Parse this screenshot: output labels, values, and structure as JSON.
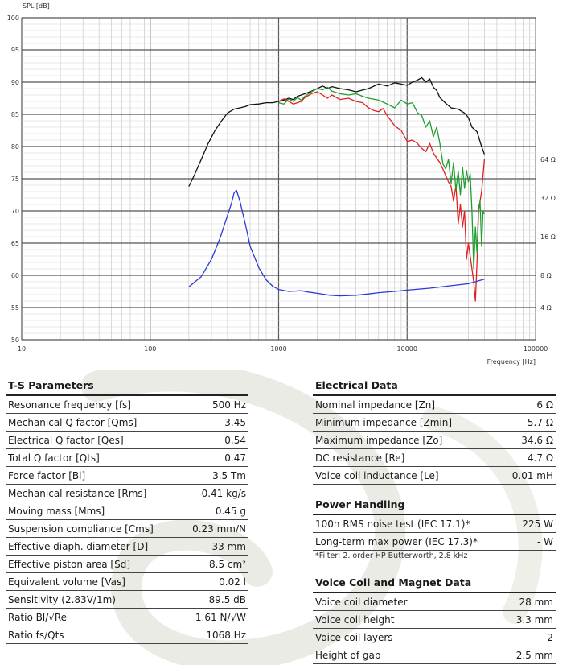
{
  "chart_data": {
    "type": "line",
    "ylabel": "SPL [dB]",
    "xlabel": "Frequency [Hz]",
    "x_scale": "log",
    "xlim": [
      10,
      100000
    ],
    "ylim": [
      50,
      100
    ],
    "x_ticks": [
      10,
      100,
      1000,
      10000,
      100000
    ],
    "x_tick_labels": [
      "10",
      "100",
      "1000",
      "10000",
      "100000"
    ],
    "y_ticks": [
      50,
      55,
      60,
      65,
      70,
      75,
      80,
      85,
      90,
      95,
      100
    ],
    "y_tick_labels": [
      "50",
      "55",
      "60",
      "65",
      "70",
      "75",
      "80",
      "85",
      "90",
      "95",
      "100"
    ],
    "right_axis": {
      "label_unit": "Ω",
      "ticks": [
        {
          "spl": 55,
          "label": "4 Ω"
        },
        {
          "spl": 60,
          "label": "8 Ω"
        },
        {
          "spl": 66,
          "label": "16 Ω"
        },
        {
          "spl": 72,
          "label": "32 Ω"
        },
        {
          "spl": 78,
          "label": "64 Ω"
        }
      ]
    },
    "grid": true,
    "series": [
      {
        "color": "#111111",
        "points": [
          [
            200,
            73.8
          ],
          [
            220,
            75.5
          ],
          [
            250,
            78
          ],
          [
            280,
            80.3
          ],
          [
            320,
            82.5
          ],
          [
            360,
            84
          ],
          [
            400,
            85.2
          ],
          [
            450,
            85.8
          ],
          [
            500,
            86
          ],
          [
            550,
            86.2
          ],
          [
            600,
            86.5
          ],
          [
            700,
            86.6
          ],
          [
            800,
            86.8
          ],
          [
            900,
            86.8
          ],
          [
            1000,
            87
          ],
          [
            1100,
            87.2
          ],
          [
            1200,
            87.5
          ],
          [
            1300,
            87.3
          ],
          [
            1400,
            87.8
          ],
          [
            1500,
            88
          ],
          [
            1600,
            88.2
          ],
          [
            1800,
            88.6
          ],
          [
            2000,
            89
          ],
          [
            2200,
            89.4
          ],
          [
            2400,
            89
          ],
          [
            2600,
            89.3
          ],
          [
            3000,
            89
          ],
          [
            3500,
            88.8
          ],
          [
            4000,
            88.5
          ],
          [
            5000,
            89
          ],
          [
            6000,
            89.7
          ],
          [
            7000,
            89.4
          ],
          [
            8000,
            89.9
          ],
          [
            9000,
            89.7
          ],
          [
            10000,
            89.5
          ],
          [
            11000,
            90
          ],
          [
            12000,
            90.3
          ],
          [
            13000,
            90.7
          ],
          [
            14000,
            90
          ],
          [
            15000,
            90.5
          ],
          [
            16000,
            89.2
          ],
          [
            17000,
            88.7
          ],
          [
            18000,
            87.6
          ],
          [
            20000,
            86.7
          ],
          [
            22000,
            86
          ],
          [
            25000,
            85.8
          ],
          [
            28000,
            85.2
          ],
          [
            30000,
            84.5
          ],
          [
            32000,
            83
          ],
          [
            35000,
            82.3
          ],
          [
            38000,
            80
          ],
          [
            40000,
            78.8
          ]
        ]
      },
      {
        "color": "#e02020",
        "points": [
          [
            1000,
            87
          ],
          [
            1100,
            87.4
          ],
          [
            1200,
            87
          ],
          [
            1300,
            86.6
          ],
          [
            1400,
            86.8
          ],
          [
            1500,
            87
          ],
          [
            1600,
            87.6
          ],
          [
            1800,
            88.2
          ],
          [
            2000,
            88.5
          ],
          [
            2200,
            88
          ],
          [
            2400,
            87.5
          ],
          [
            2600,
            88
          ],
          [
            3000,
            87.3
          ],
          [
            3500,
            87.5
          ],
          [
            4000,
            87
          ],
          [
            4500,
            86.8
          ],
          [
            5000,
            86
          ],
          [
            5500,
            85.6
          ],
          [
            6000,
            85.4
          ],
          [
            6500,
            85.9
          ],
          [
            7000,
            84.8
          ],
          [
            7500,
            84
          ],
          [
            8000,
            83.2
          ],
          [
            9000,
            82.5
          ],
          [
            10000,
            80.8
          ],
          [
            11000,
            81
          ],
          [
            12000,
            80.5
          ],
          [
            13000,
            79.7
          ],
          [
            14000,
            79.2
          ],
          [
            15000,
            80.5
          ],
          [
            16000,
            79
          ],
          [
            17000,
            78.2
          ],
          [
            18000,
            77.5
          ],
          [
            19000,
            76.5
          ],
          [
            20000,
            75.5
          ],
          [
            21000,
            74.5
          ],
          [
            22000,
            73.8
          ],
          [
            23000,
            71.5
          ],
          [
            24000,
            74
          ],
          [
            25000,
            68
          ],
          [
            26000,
            71
          ],
          [
            27000,
            67.5
          ],
          [
            28000,
            70
          ],
          [
            29000,
            62.5
          ],
          [
            30000,
            65
          ],
          [
            31000,
            63
          ],
          [
            32000,
            61
          ],
          [
            33000,
            59
          ],
          [
            34000,
            56
          ],
          [
            35000,
            62
          ],
          [
            36000,
            70
          ],
          [
            38000,
            73
          ],
          [
            40000,
            78
          ]
        ]
      },
      {
        "color": "#1f9e2e",
        "points": [
          [
            1000,
            86.8
          ],
          [
            1100,
            86.6
          ],
          [
            1200,
            87.4
          ],
          [
            1300,
            87
          ],
          [
            1400,
            87.6
          ],
          [
            1500,
            87.2
          ],
          [
            1600,
            87.8
          ],
          [
            1800,
            88.5
          ],
          [
            2000,
            89
          ],
          [
            2200,
            88.8
          ],
          [
            2400,
            89.2
          ],
          [
            2600,
            88.6
          ],
          [
            3000,
            88.2
          ],
          [
            3500,
            88
          ],
          [
            4000,
            88.2
          ],
          [
            4500,
            87.8
          ],
          [
            5000,
            87.5
          ],
          [
            6000,
            87.2
          ],
          [
            7000,
            86.6
          ],
          [
            8000,
            86
          ],
          [
            9000,
            87.2
          ],
          [
            10000,
            86.6
          ],
          [
            11000,
            86.8
          ],
          [
            12000,
            85.3
          ],
          [
            13000,
            84.8
          ],
          [
            14000,
            83
          ],
          [
            15000,
            84
          ],
          [
            16000,
            81.5
          ],
          [
            17000,
            83
          ],
          [
            18000,
            80.5
          ],
          [
            19000,
            77.3
          ],
          [
            20000,
            76.5
          ],
          [
            21000,
            78
          ],
          [
            22000,
            74.3
          ],
          [
            23000,
            77.5
          ],
          [
            24000,
            73.2
          ],
          [
            25000,
            76.2
          ],
          [
            26000,
            72.5
          ],
          [
            27000,
            76.8
          ],
          [
            28000,
            73.5
          ],
          [
            29000,
            76.3
          ],
          [
            30000,
            74.5
          ],
          [
            31000,
            75.8
          ],
          [
            32000,
            70
          ],
          [
            33000,
            61
          ],
          [
            34000,
            67.5
          ],
          [
            35000,
            63.5
          ],
          [
            36000,
            70.5
          ],
          [
            37000,
            71.5
          ],
          [
            38000,
            64.5
          ],
          [
            39000,
            70
          ],
          [
            40000,
            69.5
          ]
        ]
      },
      {
        "color": "#2a3ad6",
        "points": [
          [
            200,
            58.2
          ],
          [
            250,
            59.8
          ],
          [
            300,
            62.5
          ],
          [
            350,
            65.8
          ],
          [
            400,
            69.3
          ],
          [
            430,
            71.2
          ],
          [
            450,
            72.8
          ],
          [
            470,
            73.2
          ],
          [
            500,
            71.5
          ],
          [
            550,
            68
          ],
          [
            600,
            64.5
          ],
          [
            700,
            61.2
          ],
          [
            800,
            59.3
          ],
          [
            900,
            58.3
          ],
          [
            1000,
            57.8
          ],
          [
            1200,
            57.5
          ],
          [
            1500,
            57.6
          ],
          [
            1700,
            57.4
          ],
          [
            2000,
            57.2
          ],
          [
            2500,
            56.9
          ],
          [
            3000,
            56.8
          ],
          [
            4000,
            56.9
          ],
          [
            5000,
            57.1
          ],
          [
            6000,
            57.3
          ],
          [
            8000,
            57.5
          ],
          [
            10000,
            57.7
          ],
          [
            15000,
            58
          ],
          [
            20000,
            58.3
          ],
          [
            30000,
            58.7
          ],
          [
            40000,
            59.4
          ]
        ]
      }
    ]
  },
  "ts": {
    "title": "T-S Parameters",
    "rows": [
      {
        "label": "Resonance frequency [fs]",
        "value": "500 Hz"
      },
      {
        "label": "Mechanical Q factor [Qms]",
        "value": "3.45"
      },
      {
        "label": "Electrical Q factor [Qes]",
        "value": "0.54"
      },
      {
        "label": "Total Q factor [Qts]",
        "value": "0.47"
      },
      {
        "label": "Force factor [Bl]",
        "value": "3.5 Tm"
      },
      {
        "label": "Mechanical resistance [Rms]",
        "value": "0.41 kg/s"
      },
      {
        "label": "Moving mass [Mms]",
        "value": "0.45 g"
      },
      {
        "label": "Suspension compliance [Cms]",
        "value": "0.23 mm/N"
      },
      {
        "label": "Effective diaph. diameter [D]",
        "value": "33 mm"
      },
      {
        "label": "Effective piston area [Sd]",
        "value": "8.5 cm²"
      },
      {
        "label": "Equivalent volume [Vas]",
        "value": "0.02 l"
      },
      {
        "label": "Sensitivity (2.83V/1m)",
        "value": "89.5 dB"
      },
      {
        "label": "Ratio Bl/√Re",
        "value": "1.61 N/√W"
      },
      {
        "label": "Ratio fs/Qts",
        "value": "1068 Hz"
      }
    ]
  },
  "electrical": {
    "title": "Electrical Data",
    "rows": [
      {
        "label": "Nominal impedance [Zn]",
        "value": "6 Ω"
      },
      {
        "label": "Minimum impedance [Zmin]",
        "value": "5.7 Ω"
      },
      {
        "label": "Maximum impedance [Zo]",
        "value": "34.6 Ω"
      },
      {
        "label": "DC resistance [Re]",
        "value": "4.7 Ω"
      },
      {
        "label": "Voice coil inductance [Le]",
        "value": "0.01 mH"
      }
    ]
  },
  "power": {
    "title": "Power Handling",
    "rows": [
      {
        "label": "100h RMS noise test (IEC 17.1)*",
        "value": "225 W"
      },
      {
        "label": "Long-term max power (IEC 17.3)*",
        "value": "- W"
      }
    ],
    "note": "*Filter: 2. order HP Butterworth, 2.8 kHz"
  },
  "voicecoil": {
    "title": "Voice Coil and Magnet Data",
    "rows": [
      {
        "label": "Voice coil diameter",
        "value": "28 mm"
      },
      {
        "label": "Voice coil height",
        "value": "3.3 mm"
      },
      {
        "label": "Voice coil layers",
        "value": "2"
      },
      {
        "label": "Height of gap",
        "value": "2.5 mm"
      }
    ]
  }
}
